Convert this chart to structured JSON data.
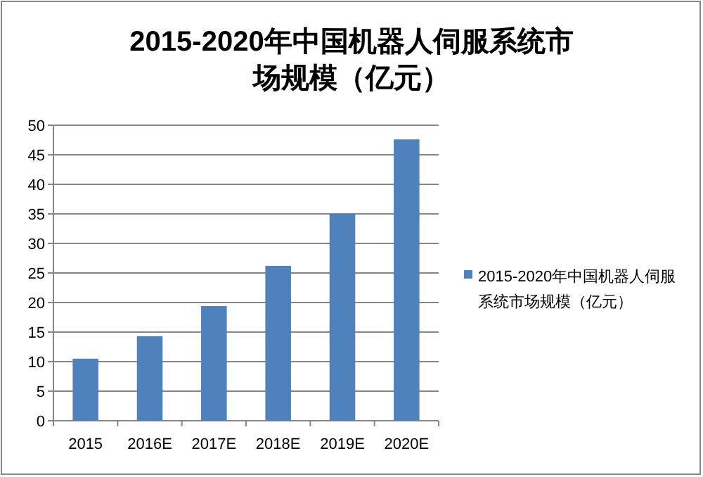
{
  "chart_data": {
    "type": "bar",
    "title": "2015-2020年中国机器人伺服系统市场规模（亿元）",
    "categories": [
      "2015",
      "2016E",
      "2017E",
      "2018E",
      "2019E",
      "2020E"
    ],
    "series": [
      {
        "name": "2015-2020年中国机器人伺服系统市场规模（亿元）",
        "color": "#4f81bd",
        "values": [
          10.5,
          14.3,
          19.4,
          26.2,
          35,
          47.6
        ]
      }
    ],
    "ylim": [
      0,
      50
    ],
    "yticks": [
      0,
      5,
      10,
      15,
      20,
      25,
      30,
      35,
      40,
      45,
      50
    ],
    "grid": "y",
    "legend": "right"
  }
}
